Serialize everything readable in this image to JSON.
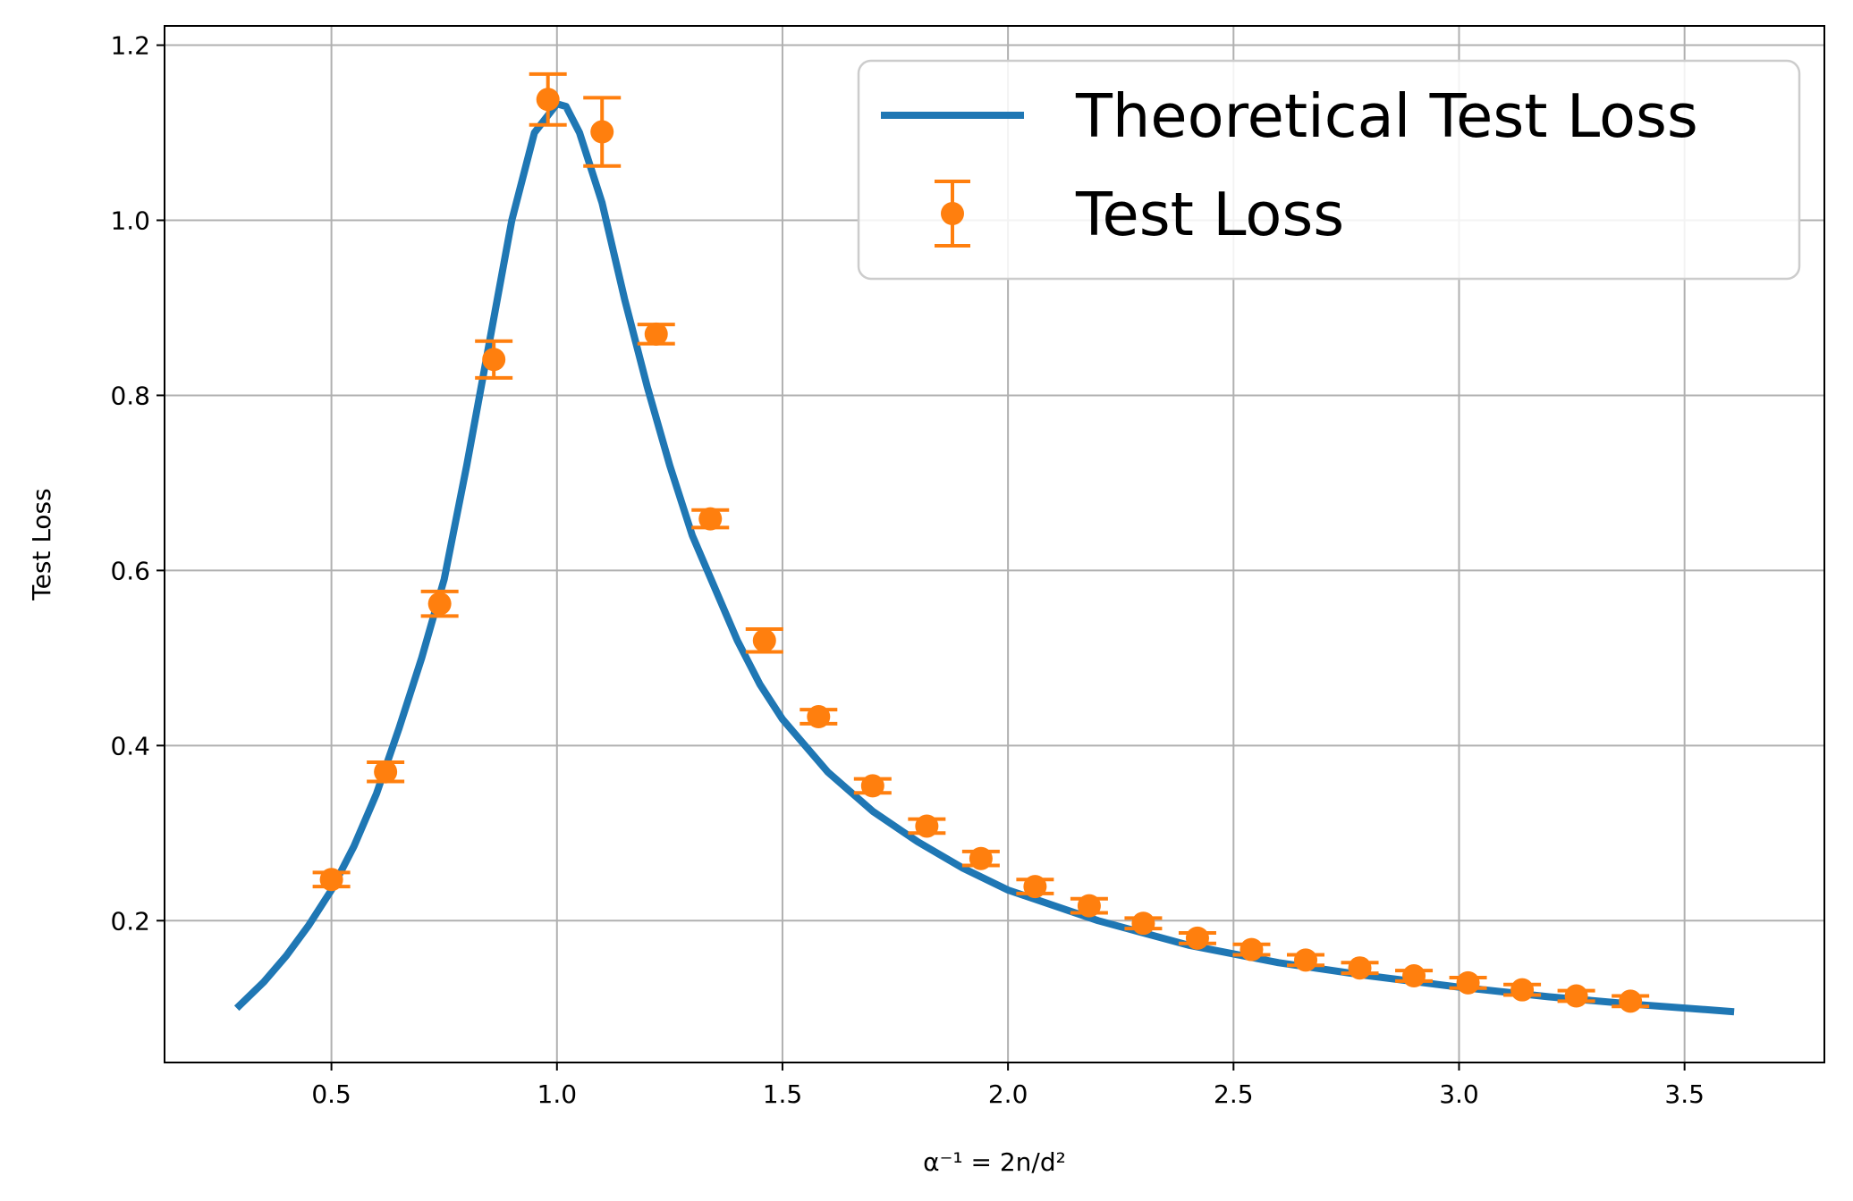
{
  "chart_data": {
    "type": "line",
    "title": "",
    "xlabel": "α⁻¹ = 2n/d²",
    "ylabel": "Test Loss",
    "xlim": [
      0.13,
      3.81
    ],
    "ylim": [
      0.038,
      1.222
    ],
    "xticks": [
      0.5,
      1.0,
      1.5,
      2.0,
      2.5,
      3.0,
      3.5
    ],
    "xtick_labels": [
      "0.5",
      "1.0",
      "1.5",
      "2.0",
      "2.5",
      "3.0",
      "3.5"
    ],
    "yticks": [
      0.2,
      0.4,
      0.6,
      0.8,
      1.0,
      1.2
    ],
    "ytick_labels": [
      "0.2",
      "0.4",
      "0.6",
      "0.8",
      "1.0",
      "1.2"
    ],
    "grid": true,
    "legend_position": "top-right",
    "series": [
      {
        "name": "Theoretical Test Loss",
        "kind": "line",
        "color": "#1f77b4",
        "x": [
          0.29,
          0.35,
          0.4,
          0.45,
          0.5,
          0.55,
          0.6,
          0.65,
          0.7,
          0.75,
          0.8,
          0.85,
          0.9,
          0.95,
          1.0,
          1.02,
          1.05,
          1.1,
          1.15,
          1.2,
          1.25,
          1.3,
          1.35,
          1.4,
          1.45,
          1.5,
          1.6,
          1.7,
          1.8,
          1.9,
          2.0,
          2.2,
          2.4,
          2.6,
          2.8,
          3.0,
          3.2,
          3.4,
          3.61
        ],
        "y": [
          0.1,
          0.13,
          0.16,
          0.195,
          0.235,
          0.285,
          0.345,
          0.42,
          0.5,
          0.59,
          0.72,
          0.86,
          1.0,
          1.1,
          1.133,
          1.13,
          1.1,
          1.02,
          0.91,
          0.81,
          0.72,
          0.64,
          0.58,
          0.52,
          0.47,
          0.43,
          0.37,
          0.325,
          0.29,
          0.26,
          0.235,
          0.2,
          0.172,
          0.152,
          0.137,
          0.124,
          0.113,
          0.104,
          0.096
        ]
      },
      {
        "name": "Test Loss",
        "kind": "errorbar",
        "color": "#ff7f0e",
        "x": [
          0.5,
          0.62,
          0.74,
          0.86,
          0.98,
          1.1,
          1.22,
          1.34,
          1.46,
          1.58,
          1.7,
          1.82,
          1.94,
          2.06,
          2.18,
          2.3,
          2.42,
          2.54,
          2.66,
          2.78,
          2.9,
          3.02,
          3.14,
          3.26,
          3.38
        ],
        "y": [
          0.247,
          0.37,
          0.562,
          0.841,
          1.138,
          1.101,
          0.87,
          0.659,
          0.52,
          0.433,
          0.354,
          0.308,
          0.271,
          0.239,
          0.217,
          0.197,
          0.18,
          0.167,
          0.155,
          0.146,
          0.137,
          0.129,
          0.121,
          0.114,
          0.108
        ],
        "yerr": [
          0.008,
          0.011,
          0.014,
          0.021,
          0.029,
          0.039,
          0.011,
          0.01,
          0.013,
          0.008,
          0.008,
          0.008,
          0.008,
          0.008,
          0.008,
          0.006,
          0.006,
          0.006,
          0.006,
          0.006,
          0.006,
          0.006,
          0.006,
          0.006,
          0.006
        ]
      }
    ]
  }
}
